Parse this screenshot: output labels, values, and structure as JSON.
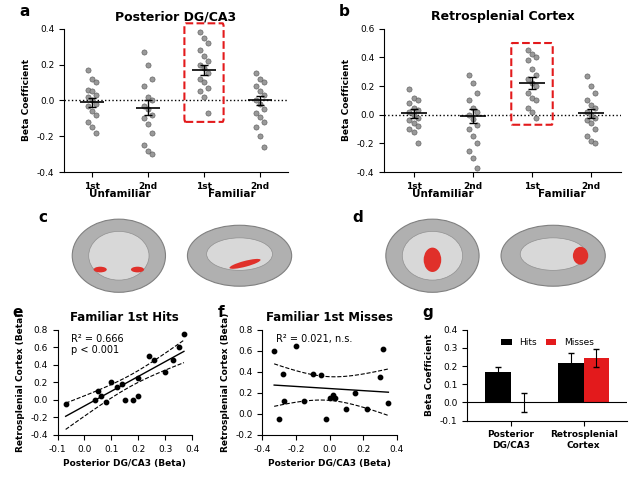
{
  "chart_data": [
    {
      "type": "dot",
      "panel_label": "a",
      "title": "Posterior DG/CA3",
      "y_label": "Beta Coefficient",
      "categories": [
        "1st",
        "2nd",
        "1st",
        "2nd"
      ],
      "groups": [
        "Unfamiliar",
        "Familiar"
      ],
      "points": [
        [
          0.17,
          0.12,
          0.1,
          0.06,
          0.05,
          0.03,
          0.02,
          0.0,
          -0.02,
          -0.03,
          -0.06,
          -0.08,
          -0.12,
          -0.15,
          -0.18
        ],
        [
          0.27,
          0.2,
          0.12,
          0.08,
          0.02,
          0.0,
          -0.03,
          -0.05,
          -0.08,
          -0.1,
          -0.13,
          -0.18,
          -0.25,
          -0.28,
          -0.3
        ],
        [
          0.38,
          0.35,
          0.32,
          0.28,
          0.25,
          0.22,
          0.2,
          0.18,
          0.15,
          0.12,
          0.1,
          0.07,
          0.05,
          0.02,
          -0.07
        ],
        [
          0.15,
          0.12,
          0.1,
          0.08,
          0.05,
          0.03,
          0.0,
          -0.02,
          -0.05,
          -0.07,
          -0.09,
          -0.12,
          -0.15,
          -0.2,
          -0.26
        ]
      ],
      "values": [
        -0.01,
        -0.04,
        0.17,
        0.0
      ],
      "errors": [
        0.025,
        0.04,
        0.03,
        0.025
      ],
      "ylim": [
        -0.4,
        0.4
      ],
      "yticks": [
        -0.4,
        -0.2,
        {
          "value": 0,
          "label": "0.0"
        },
        0.2,
        0.4
      ],
      "color": "#999999"
    },
    {
      "type": "dot",
      "panel_label": "b",
      "title": "Retrosplenial Cortex",
      "y_label": "Beta Coefficient",
      "categories": [
        "1st",
        "2nd",
        "1st",
        "2nd"
      ],
      "groups": [
        "Unfamiliar",
        "Familiar"
      ],
      "points": [
        [
          0.18,
          0.12,
          0.1,
          0.08,
          0.05,
          0.03,
          0.02,
          0.0,
          -0.02,
          -0.04,
          -0.06,
          -0.08,
          -0.1,
          -0.12,
          -0.2
        ],
        [
          0.28,
          0.22,
          0.15,
          0.1,
          0.05,
          0.02,
          0.0,
          -0.03,
          -0.07,
          -0.1,
          -0.15,
          -0.2,
          -0.25,
          -0.3,
          -0.37
        ],
        [
          0.45,
          0.42,
          0.4,
          0.38,
          0.32,
          0.28,
          0.25,
          0.22,
          0.2,
          0.15,
          0.12,
          0.1,
          0.05,
          0.02,
          -0.02
        ],
        [
          0.27,
          0.2,
          0.15,
          0.1,
          0.07,
          0.05,
          0.02,
          0.0,
          -0.02,
          -0.04,
          -0.06,
          -0.1,
          -0.15,
          -0.18,
          -0.2
        ]
      ],
      "values": [
        0.01,
        -0.01,
        0.22,
        0.01
      ],
      "errors": [
        0.03,
        0.05,
        0.04,
        0.03
      ],
      "ylim": [
        -0.4,
        0.6
      ],
      "yticks": [
        -0.4,
        -0.2,
        {
          "value": 0,
          "label": "0.0"
        },
        0.2,
        0.4,
        0.6
      ],
      "color": "#999999"
    },
    {
      "type": "image",
      "panel_label": "c"
    },
    {
      "type": "image",
      "panel_label": "d"
    },
    {
      "type": "scatter",
      "panel_label": "e",
      "title": "Familiar 1st Hits",
      "x_label": "Posterior DG/CA3 (Beta)",
      "y_label": "Retrosplenial Cortex (Beta)",
      "x": [
        -0.07,
        0.04,
        0.05,
        0.06,
        0.08,
        0.1,
        0.12,
        0.14,
        0.15,
        0.18,
        0.2,
        0.2,
        0.24,
        0.26,
        0.3,
        0.33,
        0.35,
        0.37
      ],
      "y": [
        -0.05,
        0.0,
        0.1,
        0.05,
        -0.02,
        0.2,
        0.15,
        0.18,
        0.0,
        0.0,
        0.05,
        0.25,
        0.5,
        0.45,
        0.32,
        0.45,
        0.6,
        0.75
      ],
      "annotations": [
        "R² = 0.666",
        "p < 0.001"
      ],
      "xlim": [
        -0.1,
        0.4
      ],
      "xticks": [
        -0.1,
        {
          "value": 0,
          "label": "0.0"
        },
        0.1,
        0.2,
        0.3,
        0.4
      ],
      "ylim": [
        -0.4,
        0.8
      ],
      "yticks": [
        -0.4,
        -0.2,
        {
          "value": 0,
          "label": "0.0"
        },
        0.2,
        0.4,
        0.6,
        0.8
      ],
      "color": "#000000"
    },
    {
      "type": "scatter",
      "panel_label": "f",
      "title": "Familiar 1st Misses",
      "x_label": "Posterior DG/CA3 (Beta)",
      "y_label": "Retrosplenial Cortex (Beta)",
      "x": [
        -0.33,
        -0.3,
        -0.28,
        -0.27,
        -0.2,
        -0.15,
        -0.1,
        -0.05,
        -0.02,
        0.0,
        0.02,
        0.03,
        0.1,
        0.15,
        0.22,
        0.3,
        0.32,
        0.35
      ],
      "y": [
        0.6,
        -0.05,
        0.38,
        0.12,
        0.65,
        0.12,
        0.38,
        0.37,
        -0.05,
        0.15,
        0.18,
        0.15,
        0.05,
        0.2,
        0.05,
        0.35,
        0.62,
        0.1
      ],
      "annotations": [
        "R² = 0.021, n.s."
      ],
      "xlim": [
        -0.4,
        0.4
      ],
      "xticks": [
        -0.4,
        -0.2,
        {
          "value": 0,
          "label": "0.0"
        },
        0.2,
        0.4
      ],
      "ylim": [
        -0.2,
        0.8
      ],
      "yticks": [
        -0.2,
        {
          "value": 0,
          "label": "0.0"
        },
        0.2,
        0.4,
        0.6,
        0.8
      ],
      "color": "#000000"
    },
    {
      "type": "bar",
      "panel_label": "g",
      "y_label": "Beta Coefficient",
      "categories": [
        "Posterior DG/CA3",
        "Retrosplenial Cortex"
      ],
      "series": [
        {
          "name": "Hits",
          "color": "#000000",
          "values": [
            0.17,
            0.22
          ],
          "errors": [
            0.025,
            0.055
          ]
        },
        {
          "name": "Misses",
          "color": "#e31a1c",
          "values": [
            0.0,
            0.245
          ],
          "errors": [
            0.05,
            0.05
          ]
        }
      ],
      "ylim": [
        -0.1,
        0.4
      ],
      "yticks": [
        -0.1,
        {
          "value": 0,
          "label": "0.0"
        },
        0.1,
        0.2,
        0.3,
        0.4
      ],
      "legend": "upper center"
    }
  ]
}
